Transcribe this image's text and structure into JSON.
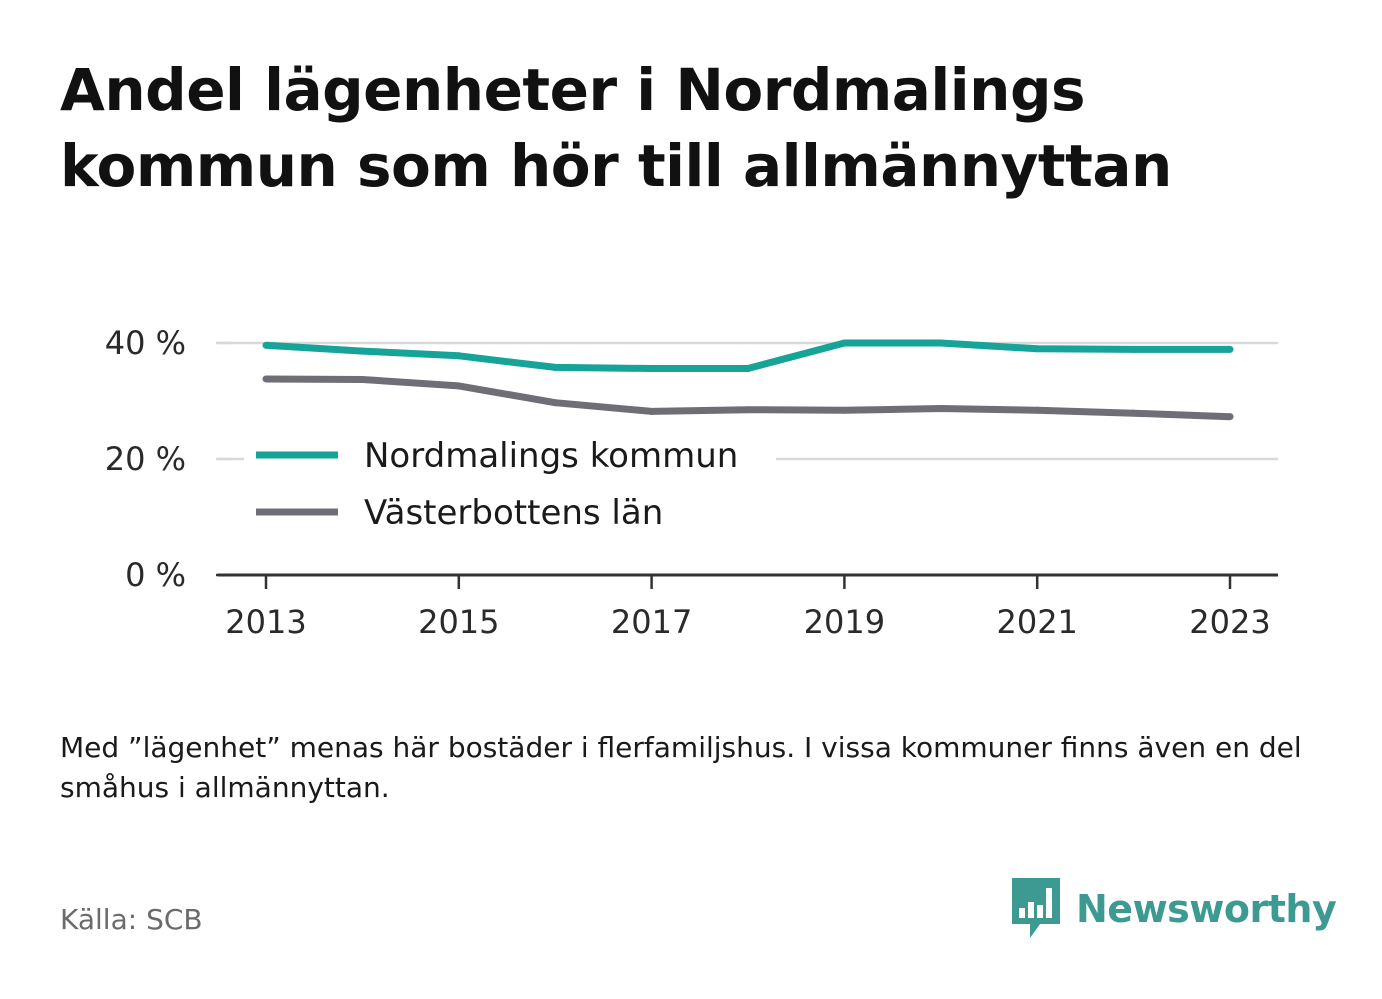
{
  "title": "Andel lägenheter i Nordmalings kommun som hör till allmännyttan",
  "note": "Med ”lägenhet” menas här bostäder i flerfamiljshus. I vissa kommuner finns även en del småhus i allmännyttan.",
  "source": "Källa: SCB",
  "brand": {
    "name": "Newsworthy",
    "color": "#3d9a93",
    "icon": "newsworthy-bar-chart-bubble-icon"
  },
  "chart_data": {
    "type": "line",
    "x": [
      2013,
      2014,
      2015,
      2016,
      2017,
      2018,
      2019,
      2020,
      2021,
      2022,
      2023
    ],
    "x_ticks": [
      "2013",
      "2015",
      "2017",
      "2019",
      "2021",
      "2023"
    ],
    "y_ticks": [
      "0 %",
      "20 %",
      "40 %"
    ],
    "ylim": [
      0,
      40
    ],
    "grid": true,
    "legend": "inside-left",
    "series": [
      {
        "name": "Nordmalings kommun",
        "color": "#16a398",
        "values": [
          39.6,
          38.6,
          37.8,
          35.8,
          35.6,
          35.6,
          40.0,
          40.0,
          39.0,
          38.9,
          38.9
        ]
      },
      {
        "name": "Västerbottens län",
        "color": "#6f6e76",
        "values": [
          33.8,
          33.7,
          32.6,
          29.7,
          28.2,
          28.5,
          28.4,
          28.7,
          28.4,
          27.9,
          27.3
        ]
      }
    ]
  }
}
